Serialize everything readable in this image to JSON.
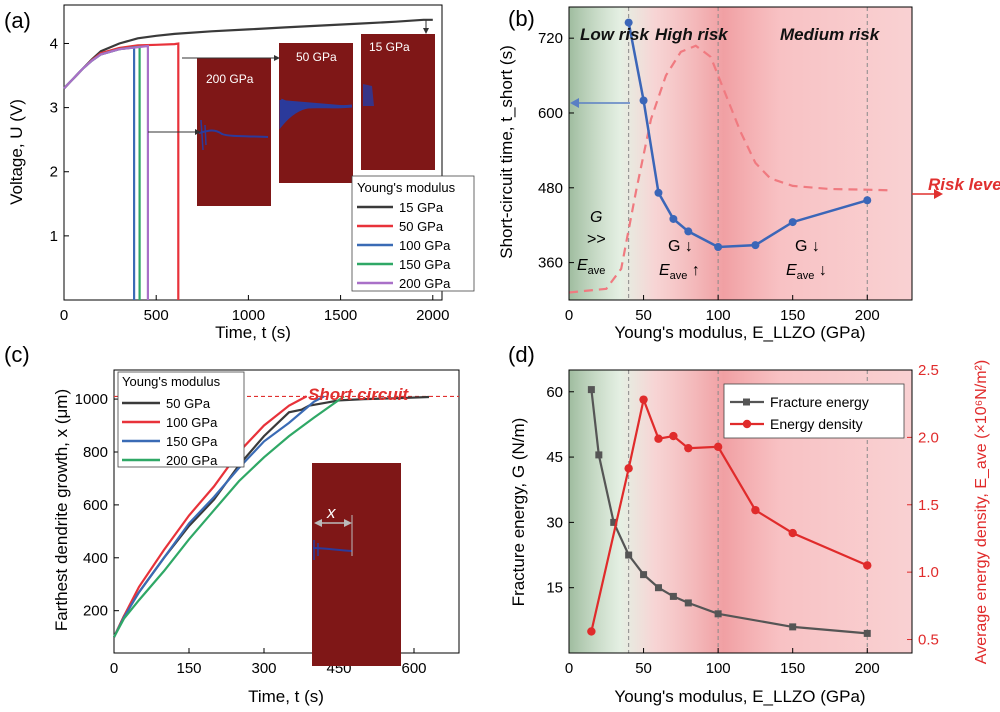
{
  "colors": {
    "black": "#3a3a3a",
    "red": "#e8323a",
    "blue": "#3a6bb5",
    "green": "#2fa866",
    "purple": "#a970c8",
    "maroon": "#7f1717",
    "dendrite": "#2b3a9b",
    "b_line": "#3b66b8",
    "b_dash": "#f07a80",
    "d_red": "#e02b2b",
    "d_black": "#555555"
  },
  "chart_data": [
    {
      "panel": "(a)",
      "type": "line",
      "xlabel": "Time, t (s)",
      "ylabel": "Voltage, U (V)",
      "xlim": [
        0,
        2050
      ],
      "ylim": [
        0,
        4.6
      ],
      "xticks": [
        "0",
        "500",
        "1000",
        "1500",
        "2000"
      ],
      "xtick_values": [
        0,
        500,
        1000,
        1500,
        2000
      ],
      "yticks": [
        "1",
        "2",
        "3",
        "4"
      ],
      "ytick_values": [
        1,
        2,
        3,
        4
      ],
      "legend_title": "Young's modulus",
      "series": [
        {
          "name": "15 GPa",
          "color": "#3a3a3a",
          "x": [
            0,
            50,
            100,
            150,
            200,
            300,
            400,
            500,
            600,
            800,
            1000,
            1200,
            1400,
            1600,
            1800,
            1950,
            2000
          ],
          "y": [
            3.3,
            3.45,
            3.6,
            3.75,
            3.88,
            4.0,
            4.08,
            4.12,
            4.15,
            4.19,
            4.22,
            4.25,
            4.28,
            4.31,
            4.34,
            4.37,
            4.37
          ]
        },
        {
          "name": "50 GPa",
          "color": "#e8323a",
          "x": [
            0,
            50,
            100,
            150,
            200,
            300,
            400,
            500,
            600,
            620,
            620
          ],
          "y": [
            3.3,
            3.45,
            3.6,
            3.74,
            3.85,
            3.93,
            3.97,
            3.98,
            3.99,
            4.0,
            0
          ]
        },
        {
          "name": "100 GPa",
          "color": "#3a6bb5",
          "x": [
            0,
            50,
            100,
            150,
            200,
            300,
            380,
            380
          ],
          "y": [
            3.3,
            3.45,
            3.6,
            3.73,
            3.83,
            3.91,
            3.94,
            0
          ]
        },
        {
          "name": "150 GPa",
          "color": "#2fa866",
          "x": [
            0,
            50,
            100,
            150,
            200,
            300,
            410,
            410
          ],
          "y": [
            3.3,
            3.45,
            3.6,
            3.73,
            3.83,
            3.91,
            3.95,
            0
          ]
        },
        {
          "name": "200 GPa",
          "color": "#a970c8",
          "x": [
            0,
            50,
            100,
            150,
            200,
            300,
            455,
            455
          ],
          "y": [
            3.3,
            3.45,
            3.6,
            3.73,
            3.83,
            3.91,
            3.96,
            0
          ]
        }
      ],
      "insets": [
        "200 GPa",
        "50 GPa",
        "15 GPa"
      ]
    },
    {
      "panel": "(b)",
      "type": "line",
      "xlabel": "Young's modulus, E_LLZO (GPa)",
      "ylabel": "Short-circuit time, t_short (s)",
      "xlim": [
        0,
        230
      ],
      "ylim": [
        300,
        770
      ],
      "xticks": [
        "0",
        "50",
        "100",
        "150",
        "200"
      ],
      "xtick_values": [
        0,
        50,
        100,
        150,
        200
      ],
      "yticks": [
        "360",
        "480",
        "600",
        "720"
      ],
      "ytick_values": [
        360,
        480,
        600,
        720
      ],
      "series": [
        {
          "name": "Short-circuit time",
          "color": "#3b66b8",
          "x": [
            40,
            50,
            60,
            70,
            80,
            100,
            125,
            150,
            200
          ],
          "y": [
            745,
            620,
            472,
            430,
            410,
            385,
            388,
            425,
            460
          ]
        },
        {
          "name": "Risk level",
          "color": "#f07a80",
          "style": "dashed",
          "x": [
            0,
            25,
            35,
            45,
            55,
            65,
            75,
            85,
            95,
            105,
            115,
            125,
            135,
            150,
            175,
            200,
            215
          ],
          "y": [
            312,
            318,
            350,
            475,
            590,
            660,
            698,
            708,
            690,
            630,
            570,
            520,
            495,
            483,
            478,
            477,
            476
          ]
        }
      ],
      "regions": [
        "Low risk",
        "High risk",
        "Medium risk"
      ],
      "risk_level": "Risk level",
      "annotations": {
        "g1": "G",
        "g2": ">>",
        "e1": "E",
        "e1_sub": "ave",
        "mid_g": "G ↓",
        "mid_e": "E",
        "mid_e_sub": "ave",
        "mid_arrow": " ↑",
        "right_g": "G ↓",
        "right_e": "E",
        "right_e_sub": "ave",
        "right_arrow": " ↓"
      }
    },
    {
      "panel": "(c)",
      "type": "line",
      "xlabel": "Time, t (s)",
      "ylabel": "Farthest dendrite growth, x (μm)",
      "xlim": [
        0,
        690
      ],
      "ylim": [
        40,
        1110
      ],
      "xticks": [
        "0",
        "150",
        "300",
        "450",
        "600"
      ],
      "xtick_values": [
        0,
        150,
        300,
        450,
        600
      ],
      "yticks": [
        "200",
        "400",
        "600",
        "800",
        "1000"
      ],
      "ytick_values": [
        200,
        400,
        600,
        800,
        1000
      ],
      "legend_title": "Young's modulus",
      "short_circuit_label": "Short circuit",
      "short_circuit_value": 1010,
      "inset_label": "x",
      "series": [
        {
          "name": "50 GPa",
          "color": "#3a3a3a",
          "x": [
            0,
            20,
            50,
            100,
            150,
            200,
            250,
            300,
            350,
            375,
            390,
            420,
            450,
            500,
            560,
            630
          ],
          "y": [
            100,
            180,
            270,
            400,
            520,
            620,
            750,
            860,
            950,
            960,
            975,
            985,
            995,
            1000,
            1003,
            1008
          ]
        },
        {
          "name": "100 GPa",
          "color": "#e8323a",
          "x": [
            0,
            20,
            50,
            100,
            150,
            200,
            250,
            300,
            350,
            385
          ],
          "y": [
            100,
            180,
            290,
            430,
            560,
            670,
            800,
            900,
            975,
            1010
          ]
        },
        {
          "name": "150 GPa",
          "color": "#3a6bb5",
          "x": [
            0,
            20,
            50,
            100,
            150,
            200,
            250,
            300,
            350,
            400,
            420
          ],
          "y": [
            100,
            175,
            270,
            400,
            530,
            630,
            740,
            840,
            910,
            990,
            1010
          ]
        },
        {
          "name": "200 GPa",
          "color": "#2fa866",
          "x": [
            0,
            20,
            50,
            100,
            150,
            200,
            250,
            300,
            350,
            400,
            460
          ],
          "y": [
            100,
            170,
            240,
            350,
            470,
            580,
            690,
            780,
            860,
            930,
            1010
          ]
        }
      ]
    },
    {
      "panel": "(d)",
      "type": "line",
      "xlabel": "Young's modulus, E_LLZO (GPa)",
      "ylabel": "Fracture energy, G (N/m)",
      "y2label": "Average energy density, E_ave (×10⁶N/m²)",
      "xlim": [
        0,
        230
      ],
      "ylim": [
        0,
        65
      ],
      "y2lim": [
        0.4,
        2.5
      ],
      "xticks": [
        "0",
        "50",
        "100",
        "150",
        "200"
      ],
      "xtick_values": [
        0,
        50,
        100,
        150,
        200
      ],
      "yticks": [
        "15",
        "30",
        "45",
        "60"
      ],
      "ytick_values": [
        15,
        30,
        45,
        60
      ],
      "y2ticks": [
        "0.5",
        "1.0",
        "1.5",
        "2.0",
        "2.5"
      ],
      "y2tick_values": [
        0.5,
        1.0,
        1.5,
        2.0,
        2.5
      ],
      "series": [
        {
          "name": "Fracture energy",
          "color": "#555555",
          "axis": "left",
          "x": [
            15,
            20,
            30,
            40,
            50,
            60,
            70,
            80,
            100,
            150,
            200
          ],
          "y": [
            60.5,
            45.5,
            30,
            22.5,
            18,
            15,
            13,
            11.5,
            9,
            6,
            4.5
          ]
        },
        {
          "name": "Energy density",
          "color": "#e02b2b",
          "axis": "right",
          "x": [
            15,
            40,
            50,
            60,
            70,
            80,
            100,
            125,
            150,
            200
          ],
          "y": [
            0.56,
            1.77,
            2.28,
            1.99,
            2.01,
            1.92,
            1.93,
            1.46,
            1.29,
            1.05
          ]
        }
      ]
    }
  ]
}
